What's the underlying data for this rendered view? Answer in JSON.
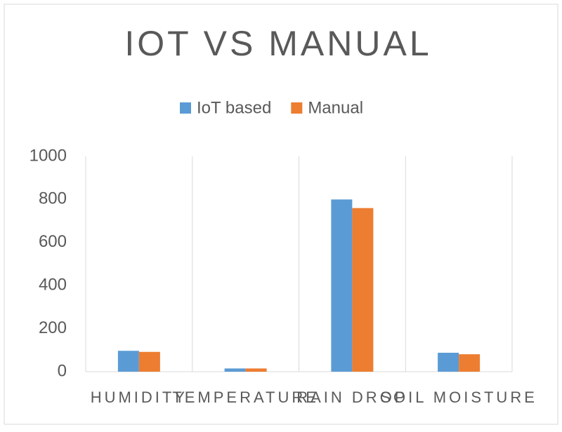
{
  "chart_data": {
    "type": "bar",
    "title": "IOT VS MANUAL",
    "categories": [
      "HUMIDITY",
      "TEMPERATURE",
      "RAIN DROP",
      "SOIL MOISTURE"
    ],
    "series": [
      {
        "name": "IoT based",
        "color": "#5b9bd5",
        "values": [
          97,
          15,
          800,
          88
        ]
      },
      {
        "name": "Manual",
        "color": "#ed7d31",
        "values": [
          92,
          15,
          760,
          81
        ]
      }
    ],
    "ylim": [
      0,
      1000
    ],
    "yticks": [
      0,
      200,
      400,
      600,
      800,
      1000
    ],
    "legend": "top"
  }
}
